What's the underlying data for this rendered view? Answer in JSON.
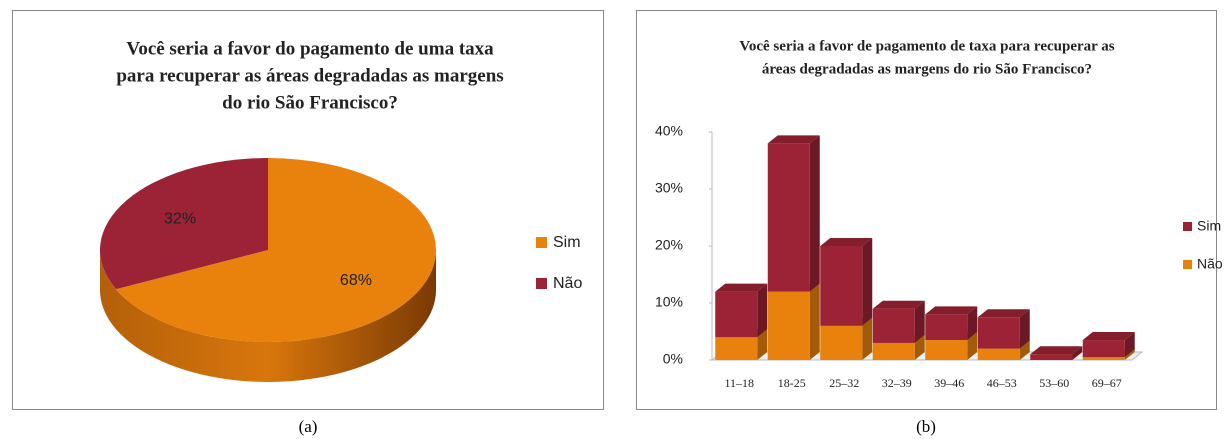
{
  "chart_data": [
    {
      "type": "pie",
      "title": [
        "Você seria a favor do pagamento de uma taxa",
        "para recuperar as áreas degradadas as margens",
        "do rio São Francisco?"
      ],
      "categories": [
        "Sim",
        "Não"
      ],
      "values": [
        68,
        32
      ],
      "value_labels": [
        "68%",
        "32%"
      ],
      "colors": [
        "#e8820c",
        "#9b2335"
      ],
      "caption": "(a)"
    },
    {
      "type": "bar3d_stacked",
      "title": [
        "Você seria a favor de pagamento de taxa para recuperar as",
        "áreas degradadas as margens do rio São Francisco?"
      ],
      "categories": [
        "11–18",
        "18-25",
        "25–32",
        "32–39",
        "39–46",
        "46–53",
        "53–60",
        "69–67"
      ],
      "series": [
        {
          "name": "Sim",
          "color": "#9b2335",
          "values": [
            8,
            26,
            14,
            6,
            4.5,
            5.5,
            1,
            3
          ]
        },
        {
          "name": "Não",
          "color": "#e8820c",
          "values": [
            4,
            12,
            6,
            3,
            3.5,
            2,
            0,
            0.5
          ]
        }
      ],
      "ylim": [
        0,
        40
      ],
      "yticks": [
        {
          "value": 0,
          "label": "0%"
        },
        {
          "value": 10,
          "label": "10%"
        },
        {
          "value": 20,
          "label": "20%"
        },
        {
          "value": 30,
          "label": "30%"
        },
        {
          "value": 40,
          "label": "40%"
        }
      ],
      "grid": false,
      "caption": "(b)"
    }
  ]
}
